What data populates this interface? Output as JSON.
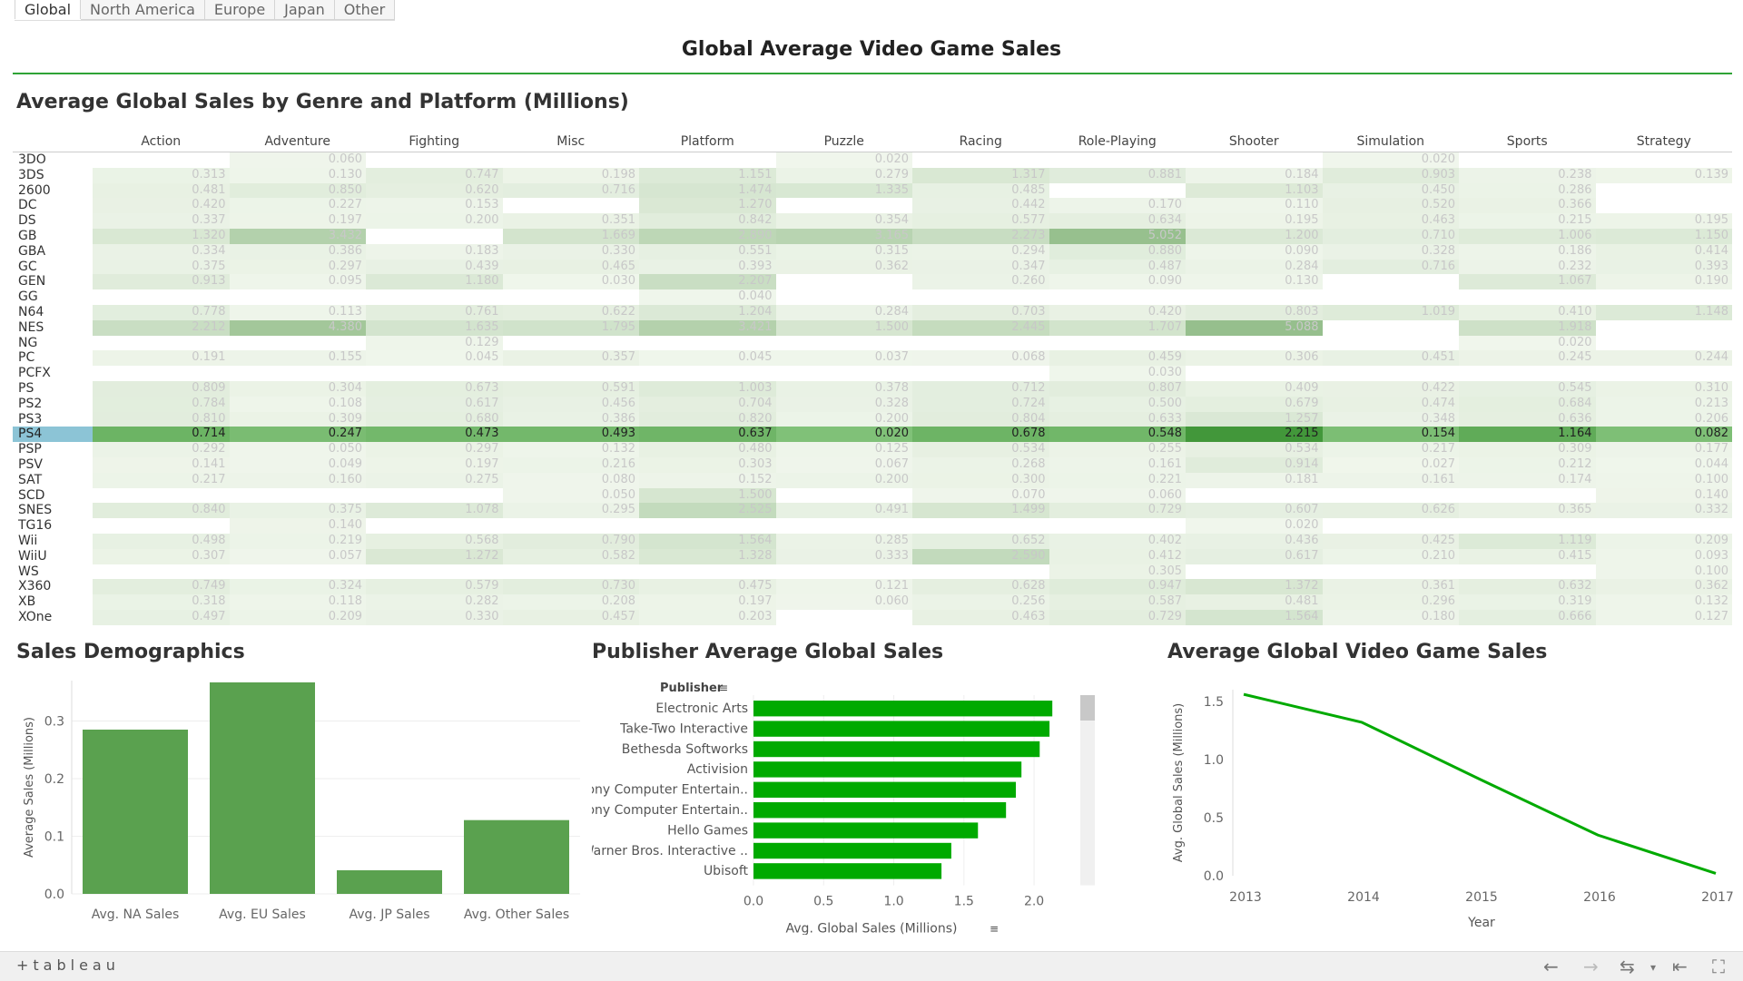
{
  "tabs": [
    "Global",
    "North America",
    "Europe",
    "Japan",
    "Other"
  ],
  "active_tab": 0,
  "title": "Global Average Video Game Sales",
  "heatmap": {
    "title": "Average Global Sales by Genre and Platform (Millions)",
    "genres": [
      "Action",
      "Adventure",
      "Fighting",
      "Misc",
      "Platform",
      "Puzzle",
      "Racing",
      "Role-Playing",
      "Shooter",
      "Simulation",
      "Sports",
      "Strategy"
    ],
    "selected_platform": "PS4",
    "rows": [
      {
        "platform": "3DO",
        "values": [
          null,
          "0.060",
          null,
          null,
          null,
          "0.020",
          null,
          null,
          null,
          "0.020",
          null,
          null
        ]
      },
      {
        "platform": "3DS",
        "values": [
          "0.313",
          "0.130",
          "0.747",
          "0.198",
          "1.151",
          "0.279",
          "1.317",
          "0.881",
          "0.184",
          "0.903",
          "0.238",
          "0.139"
        ]
      },
      {
        "platform": "2600",
        "values": [
          "0.481",
          "0.850",
          "0.620",
          "0.716",
          "1.474",
          "1.335",
          "0.485",
          null,
          "1.103",
          "0.450",
          "0.286",
          null
        ]
      },
      {
        "platform": "DC",
        "values": [
          "0.420",
          "0.227",
          "0.153",
          null,
          "1.270",
          null,
          "0.442",
          "0.170",
          "0.110",
          "0.520",
          "0.366",
          null
        ]
      },
      {
        "platform": "DS",
        "values": [
          "0.337",
          "0.197",
          "0.200",
          "0.351",
          "0.842",
          "0.354",
          "0.577",
          "0.634",
          "0.195",
          "0.463",
          "0.215",
          "0.195"
        ]
      },
      {
        "platform": "GB",
        "values": [
          "1.320",
          "3.432",
          null,
          "1.669",
          "2.890",
          "3.165",
          "2.273",
          "5.052",
          "1.200",
          "0.710",
          "1.006",
          "1.150"
        ]
      },
      {
        "platform": "GBA",
        "values": [
          "0.334",
          "0.386",
          "0.183",
          "0.330",
          "0.551",
          "0.315",
          "0.294",
          "0.880",
          "0.090",
          "0.328",
          "0.186",
          "0.414"
        ]
      },
      {
        "platform": "GC",
        "values": [
          "0.375",
          "0.297",
          "0.439",
          "0.465",
          "0.393",
          "0.362",
          "0.347",
          "0.487",
          "0.284",
          "0.716",
          "0.232",
          "0.393"
        ]
      },
      {
        "platform": "GEN",
        "values": [
          "0.913",
          "0.095",
          "1.180",
          "0.030",
          "2.207",
          null,
          "0.260",
          "0.090",
          "0.130",
          null,
          "1.067",
          "0.190"
        ]
      },
      {
        "platform": "GG",
        "values": [
          null,
          null,
          null,
          null,
          "0.040",
          null,
          null,
          null,
          null,
          null,
          null,
          null
        ]
      },
      {
        "platform": "N64",
        "values": [
          "0.778",
          "0.113",
          "0.761",
          "0.622",
          "1.204",
          "0.284",
          "0.703",
          "0.420",
          "0.803",
          "1.019",
          "0.410",
          "1.148"
        ]
      },
      {
        "platform": "NES",
        "values": [
          "2.212",
          "4.380",
          "1.635",
          "1.795",
          "3.421",
          "1.500",
          "2.445",
          "1.707",
          "5.088",
          null,
          "1.918",
          null
        ]
      },
      {
        "platform": "NG",
        "values": [
          null,
          null,
          "0.129",
          null,
          null,
          null,
          null,
          null,
          null,
          null,
          "0.020",
          null
        ]
      },
      {
        "platform": "PC",
        "values": [
          "0.191",
          "0.155",
          "0.045",
          "0.357",
          "0.045",
          "0.037",
          "0.068",
          "0.459",
          "0.306",
          "0.451",
          "0.245",
          "0.244"
        ]
      },
      {
        "platform": "PCFX",
        "values": [
          null,
          null,
          null,
          null,
          null,
          null,
          null,
          "0.030",
          null,
          null,
          null,
          null
        ]
      },
      {
        "platform": "PS",
        "values": [
          "0.809",
          "0.304",
          "0.673",
          "0.591",
          "1.003",
          "0.378",
          "0.712",
          "0.807",
          "0.409",
          "0.422",
          "0.545",
          "0.310"
        ]
      },
      {
        "platform": "PS2",
        "values": [
          "0.784",
          "0.108",
          "0.617",
          "0.456",
          "0.704",
          "0.328",
          "0.724",
          "0.500",
          "0.679",
          "0.474",
          "0.684",
          "0.213"
        ]
      },
      {
        "platform": "PS3",
        "values": [
          "0.810",
          "0.309",
          "0.680",
          "0.386",
          "0.820",
          "0.200",
          "0.804",
          "0.633",
          "1.257",
          "0.348",
          "0.636",
          "0.206"
        ]
      },
      {
        "platform": "PS4",
        "values": [
          "0.714",
          "0.247",
          "0.473",
          "0.493",
          "0.637",
          "0.020",
          "0.678",
          "0.548",
          "2.215",
          "0.154",
          "1.164",
          "0.082"
        ]
      },
      {
        "platform": "PSP",
        "values": [
          "0.292",
          "0.050",
          "0.297",
          "0.132",
          "0.480",
          "0.125",
          "0.534",
          "0.255",
          "0.534",
          "0.217",
          "0.309",
          "0.177"
        ]
      },
      {
        "platform": "PSV",
        "values": [
          "0.141",
          "0.049",
          "0.197",
          "0.216",
          "0.303",
          "0.067",
          "0.268",
          "0.161",
          "0.914",
          "0.027",
          "0.212",
          "0.044"
        ]
      },
      {
        "platform": "SAT",
        "values": [
          "0.217",
          "0.160",
          "0.275",
          "0.080",
          "0.152",
          "0.200",
          "0.300",
          "0.221",
          "0.181",
          "0.161",
          "0.174",
          "0.100"
        ]
      },
      {
        "platform": "SCD",
        "values": [
          null,
          null,
          null,
          "0.050",
          "1.500",
          null,
          "0.070",
          "0.060",
          null,
          null,
          null,
          "0.140"
        ]
      },
      {
        "platform": "SNES",
        "values": [
          "0.840",
          "0.375",
          "1.078",
          "0.295",
          "2.525",
          "0.491",
          "1.499",
          "0.729",
          "0.607",
          "0.626",
          "0.365",
          "0.332"
        ]
      },
      {
        "platform": "TG16",
        "values": [
          null,
          "0.140",
          null,
          null,
          null,
          null,
          null,
          null,
          "0.020",
          null,
          null,
          null
        ]
      },
      {
        "platform": "Wii",
        "values": [
          "0.498",
          "0.219",
          "0.568",
          "0.790",
          "1.564",
          "0.285",
          "0.652",
          "0.402",
          "0.436",
          "0.425",
          "1.119",
          "0.209"
        ]
      },
      {
        "platform": "WiiU",
        "values": [
          "0.307",
          "0.057",
          "1.272",
          "0.582",
          "1.328",
          "0.333",
          "2.590",
          "0.412",
          "0.617",
          "0.210",
          "0.415",
          "0.093"
        ]
      },
      {
        "platform": "WS",
        "values": [
          null,
          null,
          null,
          null,
          null,
          null,
          null,
          "0.305",
          null,
          null,
          null,
          "0.100"
        ]
      },
      {
        "platform": "X360",
        "values": [
          "0.749",
          "0.324",
          "0.579",
          "0.730",
          "0.475",
          "0.121",
          "0.628",
          "0.947",
          "1.372",
          "0.361",
          "0.632",
          "0.362"
        ]
      },
      {
        "platform": "XB",
        "values": [
          "0.318",
          "0.118",
          "0.282",
          "0.208",
          "0.197",
          "0.060",
          "0.256",
          "0.587",
          "0.481",
          "0.296",
          "0.319",
          "0.132"
        ]
      },
      {
        "platform": "XOne",
        "values": [
          "0.497",
          "0.209",
          "0.330",
          "0.457",
          "0.203",
          null,
          "0.463",
          "0.729",
          "1.564",
          "0.180",
          "0.666",
          "0.127"
        ]
      }
    ]
  },
  "demographics": {
    "title": "Sales Demographics",
    "chart_data": {
      "type": "bar",
      "categories": [
        "Avg. NA Sales",
        "Avg. EU Sales",
        "Avg. JP Sales",
        "Avg. Other Sales"
      ],
      "values": [
        0.285,
        0.367,
        0.041,
        0.128
      ],
      "ylabel": "Average Sales (Millions)",
      "yticks": [
        0.0,
        0.1,
        0.2,
        0.3
      ],
      "ylim": [
        0,
        0.37
      ],
      "color": "#5aa14f"
    }
  },
  "publishers": {
    "title": "Publisher Average Global Sales",
    "column_header": "Publisher",
    "chart_data": {
      "type": "bar",
      "orientation": "horizontal",
      "categories": [
        "Electronic Arts",
        "Take-Two Interactive",
        "Bethesda Softworks",
        "Activision",
        "Sony Computer Entertain..",
        "Sony Computer Entertain..",
        "Hello Games",
        "Warner Bros. Interactive ..",
        "Ubisoft"
      ],
      "values": [
        2.13,
        2.11,
        2.04,
        1.91,
        1.87,
        1.8,
        1.6,
        1.41,
        1.34
      ],
      "xlabel": "Avg. Global Sales (Millions)",
      "xticks": [
        "0.0",
        "0.5",
        "1.0",
        "1.5",
        "2.0"
      ],
      "xlim": [
        0,
        2.2
      ],
      "color": "#00aa00"
    }
  },
  "trend": {
    "title": "Average Global Video Game Sales",
    "chart_data": {
      "type": "line",
      "x": [
        "2013",
        "2014",
        "2015",
        "2016",
        "2017"
      ],
      "y": [
        1.56,
        1.32,
        0.83,
        0.35,
        0.02
      ],
      "xlabel": "Year",
      "ylabel": "Avg. Global Sales (Millions)",
      "yticks": [
        "0.0",
        "0.5",
        "1.0",
        "1.5"
      ],
      "ylim": [
        0,
        1.6
      ],
      "color": "#00aa00"
    }
  },
  "footer": {
    "logo": "+tableau"
  }
}
